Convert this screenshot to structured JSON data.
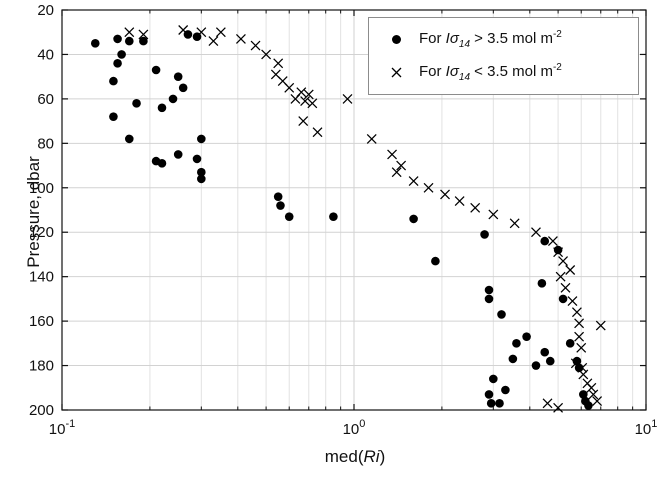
{
  "chart_data": {
    "type": "scatter",
    "title": "",
    "xlabel_parts": {
      "pre": "med(",
      "italic": "Ri",
      "post": ")"
    },
    "ylabel": "Pressure, dbar",
    "x_scale": "log",
    "xlim": [
      0.1,
      10
    ],
    "ylim": [
      20,
      200
    ],
    "y_reversed": true,
    "grid": true,
    "legend_position": "northeast",
    "marker_color": "#000000",
    "x_ticks": [
      {
        "value": 0.1,
        "base": "10",
        "exp": "-1"
      },
      {
        "value": 1,
        "base": "10",
        "exp": "0"
      },
      {
        "value": 10,
        "base": "10",
        "exp": "1"
      }
    ],
    "y_ticks": [
      20,
      40,
      60,
      80,
      100,
      120,
      140,
      160,
      180,
      200
    ],
    "series": [
      {
        "name": "For Iσ14 > 3.5 mol m-2",
        "marker": "circle",
        "points": [
          [
            0.13,
            35
          ],
          [
            0.155,
            33
          ],
          [
            0.17,
            34
          ],
          [
            0.19,
            34
          ],
          [
            0.16,
            40
          ],
          [
            0.155,
            44
          ],
          [
            0.27,
            31
          ],
          [
            0.29,
            32
          ],
          [
            0.15,
            52
          ],
          [
            0.21,
            47
          ],
          [
            0.25,
            50
          ],
          [
            0.26,
            55
          ],
          [
            0.24,
            60
          ],
          [
            0.18,
            62
          ],
          [
            0.22,
            64
          ],
          [
            0.15,
            68
          ],
          [
            0.17,
            78
          ],
          [
            0.25,
            85
          ],
          [
            0.21,
            88
          ],
          [
            0.22,
            89
          ],
          [
            0.3,
            78
          ],
          [
            0.29,
            87
          ],
          [
            0.3,
            93
          ],
          [
            0.3,
            96
          ],
          [
            0.55,
            104
          ],
          [
            0.56,
            108
          ],
          [
            0.6,
            113
          ],
          [
            0.85,
            113
          ],
          [
            1.6,
            114
          ],
          [
            2.8,
            121
          ],
          [
            1.9,
            133
          ],
          [
            4.5,
            124
          ],
          [
            5.0,
            128
          ],
          [
            4.4,
            143
          ],
          [
            5.2,
            150
          ],
          [
            2.9,
            146
          ],
          [
            2.9,
            150
          ],
          [
            3.2,
            157
          ],
          [
            3.9,
            167
          ],
          [
            3.6,
            170
          ],
          [
            4.5,
            174
          ],
          [
            3.5,
            177
          ],
          [
            4.2,
            180
          ],
          [
            4.7,
            178
          ],
          [
            5.5,
            170
          ],
          [
            5.8,
            178
          ],
          [
            5.9,
            181
          ],
          [
            3.0,
            186
          ],
          [
            3.3,
            191
          ],
          [
            2.9,
            193
          ],
          [
            2.95,
            197
          ],
          [
            3.15,
            197
          ],
          [
            6.1,
            193
          ],
          [
            6.2,
            196
          ],
          [
            6.35,
            198
          ]
        ]
      },
      {
        "name": "For Iσ14 < 3.5 mol m-2",
        "marker": "cross",
        "points": [
          [
            0.17,
            30
          ],
          [
            0.19,
            31
          ],
          [
            0.26,
            29
          ],
          [
            0.3,
            30
          ],
          [
            0.35,
            30
          ],
          [
            0.33,
            34
          ],
          [
            0.41,
            33
          ],
          [
            0.46,
            36
          ],
          [
            0.5,
            40
          ],
          [
            0.55,
            44
          ],
          [
            0.54,
            49
          ],
          [
            0.57,
            52
          ],
          [
            0.6,
            55
          ],
          [
            0.66,
            57
          ],
          [
            0.7,
            58
          ],
          [
            0.63,
            60
          ],
          [
            0.68,
            61
          ],
          [
            0.72,
            62
          ],
          [
            0.95,
            60
          ],
          [
            0.67,
            70
          ],
          [
            0.75,
            75
          ],
          [
            1.15,
            78
          ],
          [
            1.35,
            85
          ],
          [
            1.45,
            90
          ],
          [
            1.4,
            93
          ],
          [
            1.6,
            97
          ],
          [
            1.8,
            100
          ],
          [
            2.05,
            103
          ],
          [
            2.3,
            106
          ],
          [
            2.6,
            109
          ],
          [
            3.0,
            112
          ],
          [
            3.55,
            116
          ],
          [
            4.2,
            120
          ],
          [
            4.8,
            124
          ],
          [
            5.0,
            129
          ],
          [
            5.2,
            133
          ],
          [
            5.5,
            137
          ],
          [
            5.1,
            140
          ],
          [
            5.3,
            145
          ],
          [
            5.6,
            151
          ],
          [
            5.8,
            156
          ],
          [
            5.9,
            161
          ],
          [
            7.0,
            162
          ],
          [
            5.9,
            167
          ],
          [
            6.0,
            172
          ],
          [
            5.75,
            179
          ],
          [
            6.05,
            181
          ],
          [
            6.1,
            184
          ],
          [
            6.3,
            188
          ],
          [
            6.5,
            190
          ],
          [
            6.6,
            193
          ],
          [
            6.8,
            196
          ],
          [
            4.6,
            197
          ],
          [
            5.0,
            199
          ]
        ]
      }
    ]
  },
  "legend": {
    "entries": [
      {
        "marker": "circle",
        "pre": "For ",
        "var": "Iσ",
        "sub": "14",
        "mid": " > 3.5 mol m",
        "sup": "-2"
      },
      {
        "marker": "cross",
        "pre": "For ",
        "var": "Iσ",
        "sub": "14",
        "mid": " < 3.5 mol m",
        "sup": "-2"
      }
    ]
  }
}
